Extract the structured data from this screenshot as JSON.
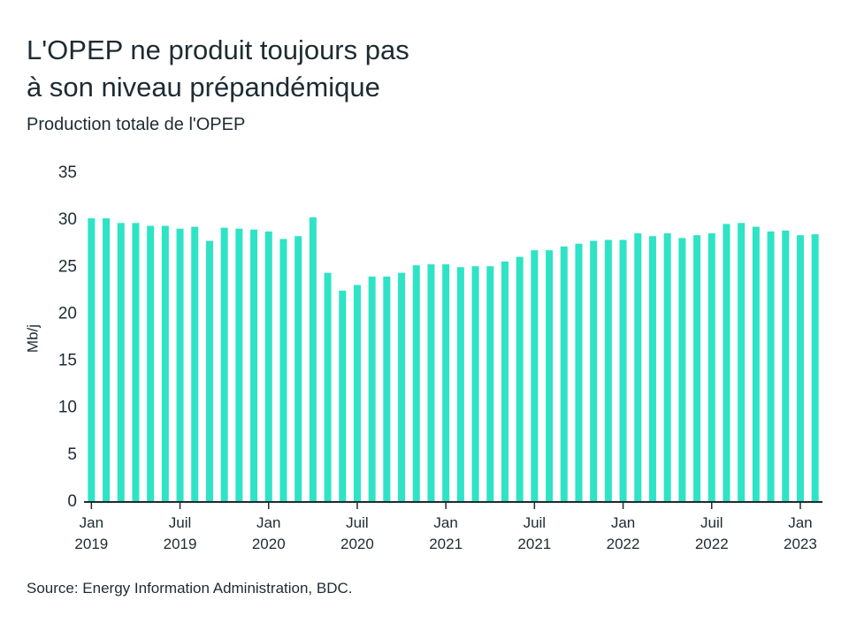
{
  "chart_data": {
    "type": "bar",
    "title": "L'OPEP ne produit toujours pas\nà son niveau prépandémique",
    "subtitle": "Production totale de l'OPEP",
    "y_label": "Mb/j",
    "source": "Source: Energy Information Administration, BDC.",
    "color": "#2ee3c6",
    "categories": [
      "Jan\n2019",
      null,
      null,
      null,
      null,
      null,
      "Juil\n2019",
      null,
      null,
      null,
      null,
      null,
      "Jan\n2020",
      null,
      null,
      null,
      null,
      null,
      "Juil\n2020",
      null,
      null,
      null,
      null,
      null,
      "Jan\n2021",
      null,
      null,
      null,
      null,
      null,
      "Juil\n2021",
      null,
      null,
      null,
      null,
      null,
      "Jan\n2022",
      null,
      null,
      null,
      null,
      null,
      "Juil\n2022",
      null,
      null,
      null,
      null,
      null,
      "Jan\n2023",
      null
    ],
    "values": [
      30.2,
      30.2,
      29.7,
      29.7,
      29.4,
      29.4,
      29.1,
      29.3,
      27.8,
      29.2,
      29.1,
      29.0,
      28.8,
      28.0,
      28.3,
      30.3,
      24.4,
      22.5,
      23.1,
      24.0,
      24.0,
      24.4,
      25.2,
      25.3,
      25.3,
      25.0,
      25.1,
      25.1,
      25.6,
      26.1,
      26.8,
      26.8,
      27.2,
      27.5,
      27.8,
      27.9,
      27.9,
      28.6,
      28.3,
      28.6,
      28.1,
      28.4,
      28.6,
      29.6,
      29.7,
      29.3,
      28.8,
      28.9,
      28.4,
      28.5
    ],
    "ylim": [
      0,
      35
    ],
    "yticks": [
      0,
      5,
      10,
      15,
      20,
      25,
      30,
      35
    ],
    "grid": false
  }
}
